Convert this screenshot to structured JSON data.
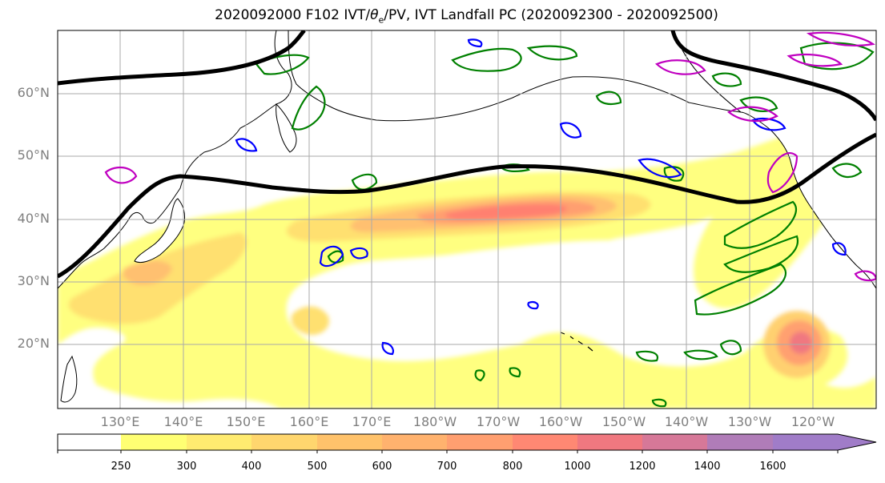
{
  "title": {
    "prefix": "2020092000 F102 IVT/",
    "theta": "θ",
    "theta_sub": "e",
    "suffix": "/PV, IVT Landfall PC (2020092300 - 2020092500)"
  },
  "map": {
    "lat_labels": [
      "60°N",
      "50°N",
      "40°N",
      "30°N",
      "20°N"
    ],
    "lon_labels": [
      "130°E",
      "140°E",
      "150°E",
      "160°E",
      "170°E",
      "180°W",
      "170°W",
      "160°W",
      "150°W",
      "140°W",
      "130°W",
      "120°W"
    ],
    "colors": {
      "ocean": "#ffffff",
      "coast": "#000000",
      "grid": "#aaaaaa",
      "theta_contour": "#000000",
      "pv_green": "#008000",
      "pv_blue": "#0000ff",
      "pv_magenta": "#c000c0"
    }
  },
  "colorbar": {
    "levels": [
      "250",
      "300",
      "400",
      "500",
      "600",
      "700",
      "800",
      "1000",
      "1200",
      "1400",
      "1600"
    ],
    "colors": [
      "#ffffff",
      "#ffff73",
      "#ffeb70",
      "#ffd66e",
      "#ffc26b",
      "#ffb26e",
      "#ff9f70",
      "#ff8873",
      "#f07880",
      "#d67898",
      "#b07cb8",
      "#a07cc8"
    ]
  }
}
